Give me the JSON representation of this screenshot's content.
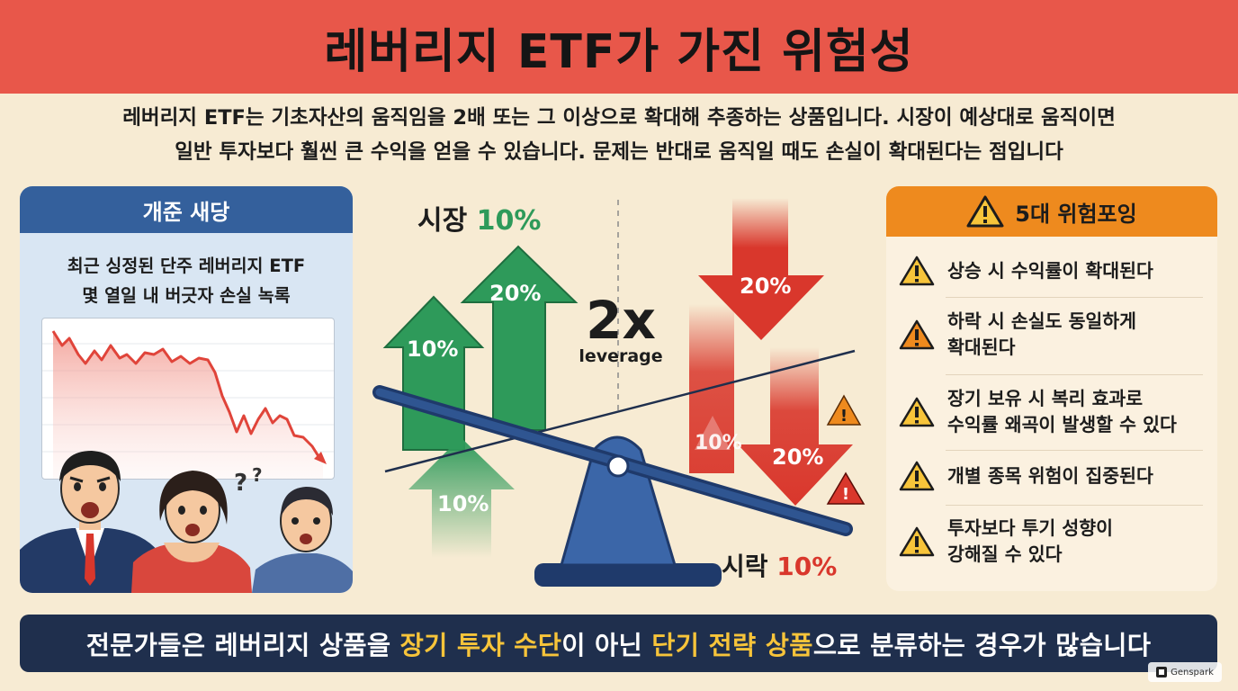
{
  "header": {
    "title": "레버리지 ETF가 가진 위험성"
  },
  "intro": {
    "line1": "레버리지 ETF는 기초자산의 움직임을 2배 또는 그 이상으로 확대해 추종하는 상품입니다. 시장이 예상대로 움직이면",
    "line2": "일반 투자보다 훨씬 큰 수익을 얻을 수 있습니다. 문제는 반대로 움직일 때도 손실이 확대된다는 점입니다"
  },
  "left_panel": {
    "title": "개준 새당",
    "line1": "최근 싱정된 단주 레버리지 ETF",
    "line2": "몇 열일 내 버긋자 손실 녹록"
  },
  "center": {
    "market_up_prefix": "시장",
    "market_up_value": "10%",
    "arrow_up_small": "10%",
    "arrow_up_big": "20%",
    "arrow_up_bottom": "10%",
    "leverage_big": "2x",
    "leverage_word": "leverage",
    "arrow_down_top": "20%",
    "arrow_down_mid": "20%",
    "arrow_down_faded": "10%",
    "market_down_prefix": "시락",
    "market_down_value": "10%"
  },
  "right_panel": {
    "title": "5대 위험포잉",
    "risks": [
      {
        "lines": [
          "상승 시 수익률이 확대된다"
        ]
      },
      {
        "lines": [
          "하락 시 손실도 동일하게",
          "확대된다"
        ]
      },
      {
        "lines": [
          "장기 보유 시 복리 효과로",
          "수익률 왜곡이 발생할 수 있다"
        ]
      },
      {
        "lines": [
          "개별 종목 위험이 집중된다"
        ]
      },
      {
        "lines": [
          "투자보다 투기 성향이",
          "강해질 수 있다"
        ]
      }
    ]
  },
  "bottom": {
    "part1": "전문가들은 레버리지 상품을 ",
    "hl1": "장기 투자 수단",
    "part2": "이 아닌 ",
    "hl2": "단기 전략 상품",
    "part3": "으로 분류하는 경우가 많습니다"
  },
  "badge": {
    "label": "Genspark"
  },
  "colors": {
    "header": "#e8574a",
    "navy": "#1f2f4d",
    "green": "#2e9a5a",
    "red": "#d9372c",
    "orange": "#ee8a1e",
    "highlight": "#f7c43a"
  }
}
